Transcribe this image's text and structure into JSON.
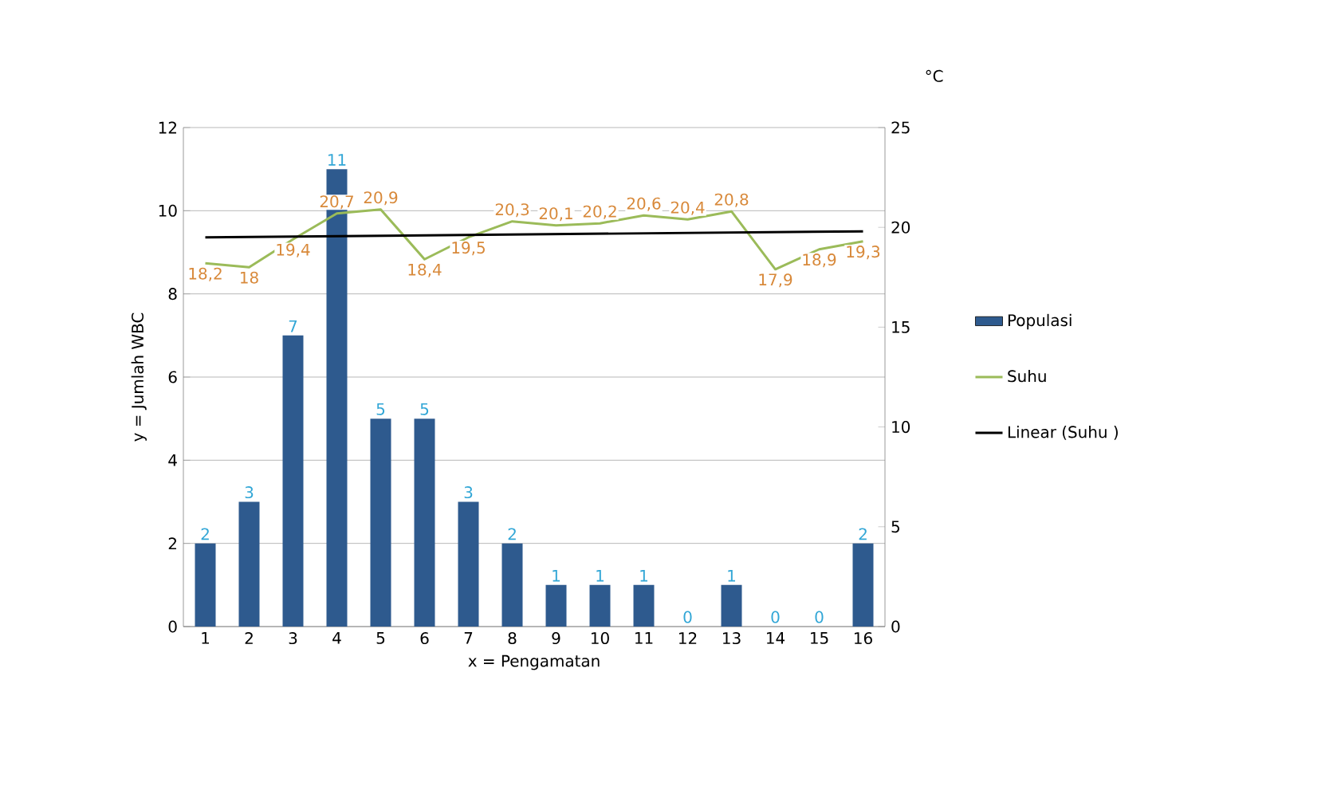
{
  "chart_data": {
    "type": "bar",
    "xlabel": "x = Pengamatan",
    "ylabel": "y = Jumlah WBC",
    "y2label": "°C",
    "categories": [
      "1",
      "2",
      "3",
      "4",
      "5",
      "6",
      "7",
      "8",
      "9",
      "10",
      "11",
      "12",
      "13",
      "14",
      "15",
      "16"
    ],
    "series": [
      {
        "name": "Populasi",
        "color": "#2e5a8e",
        "values": [
          2,
          3,
          7,
          11,
          5,
          5,
          3,
          2,
          1,
          1,
          1,
          0,
          1,
          0,
          0,
          2
        ],
        "value_labels": [
          "2",
          "3",
          "7",
          "11",
          "5",
          "5",
          "3",
          "2",
          "1",
          "1",
          "1",
          "0",
          "1",
          "0",
          "0",
          "2"
        ]
      },
      {
        "name": "Suhu",
        "type": "line",
        "axis": "y2",
        "color": "#9bbb59",
        "values": [
          18.2,
          18,
          19.4,
          20.7,
          20.9,
          18.4,
          19.5,
          20.3,
          20.1,
          20.2,
          20.6,
          20.4,
          20.8,
          17.9,
          18.9,
          19.3
        ],
        "value_labels": [
          "18,2",
          "18",
          "19,4",
          "20,7",
          "20,9",
          "18,4",
          "19,5",
          "20,3",
          "20,1",
          "20,2",
          "20,6",
          "20,4",
          "20,8",
          "17,9",
          "18,9",
          "19,3"
        ]
      },
      {
        "name": "Linear (Suhu )",
        "type": "line",
        "axis": "y2",
        "color": "#000000",
        "x": [
          "1",
          "16"
        ],
        "values": [
          19.5,
          19.8
        ]
      }
    ],
    "ylim": [
      0,
      12
    ],
    "yticks": [
      0,
      2,
      4,
      6,
      8,
      10,
      12
    ],
    "y2lim": [
      0,
      25
    ],
    "y2ticks": [
      0,
      5,
      10,
      15,
      20,
      25
    ],
    "grid": "y",
    "legend": "right"
  }
}
